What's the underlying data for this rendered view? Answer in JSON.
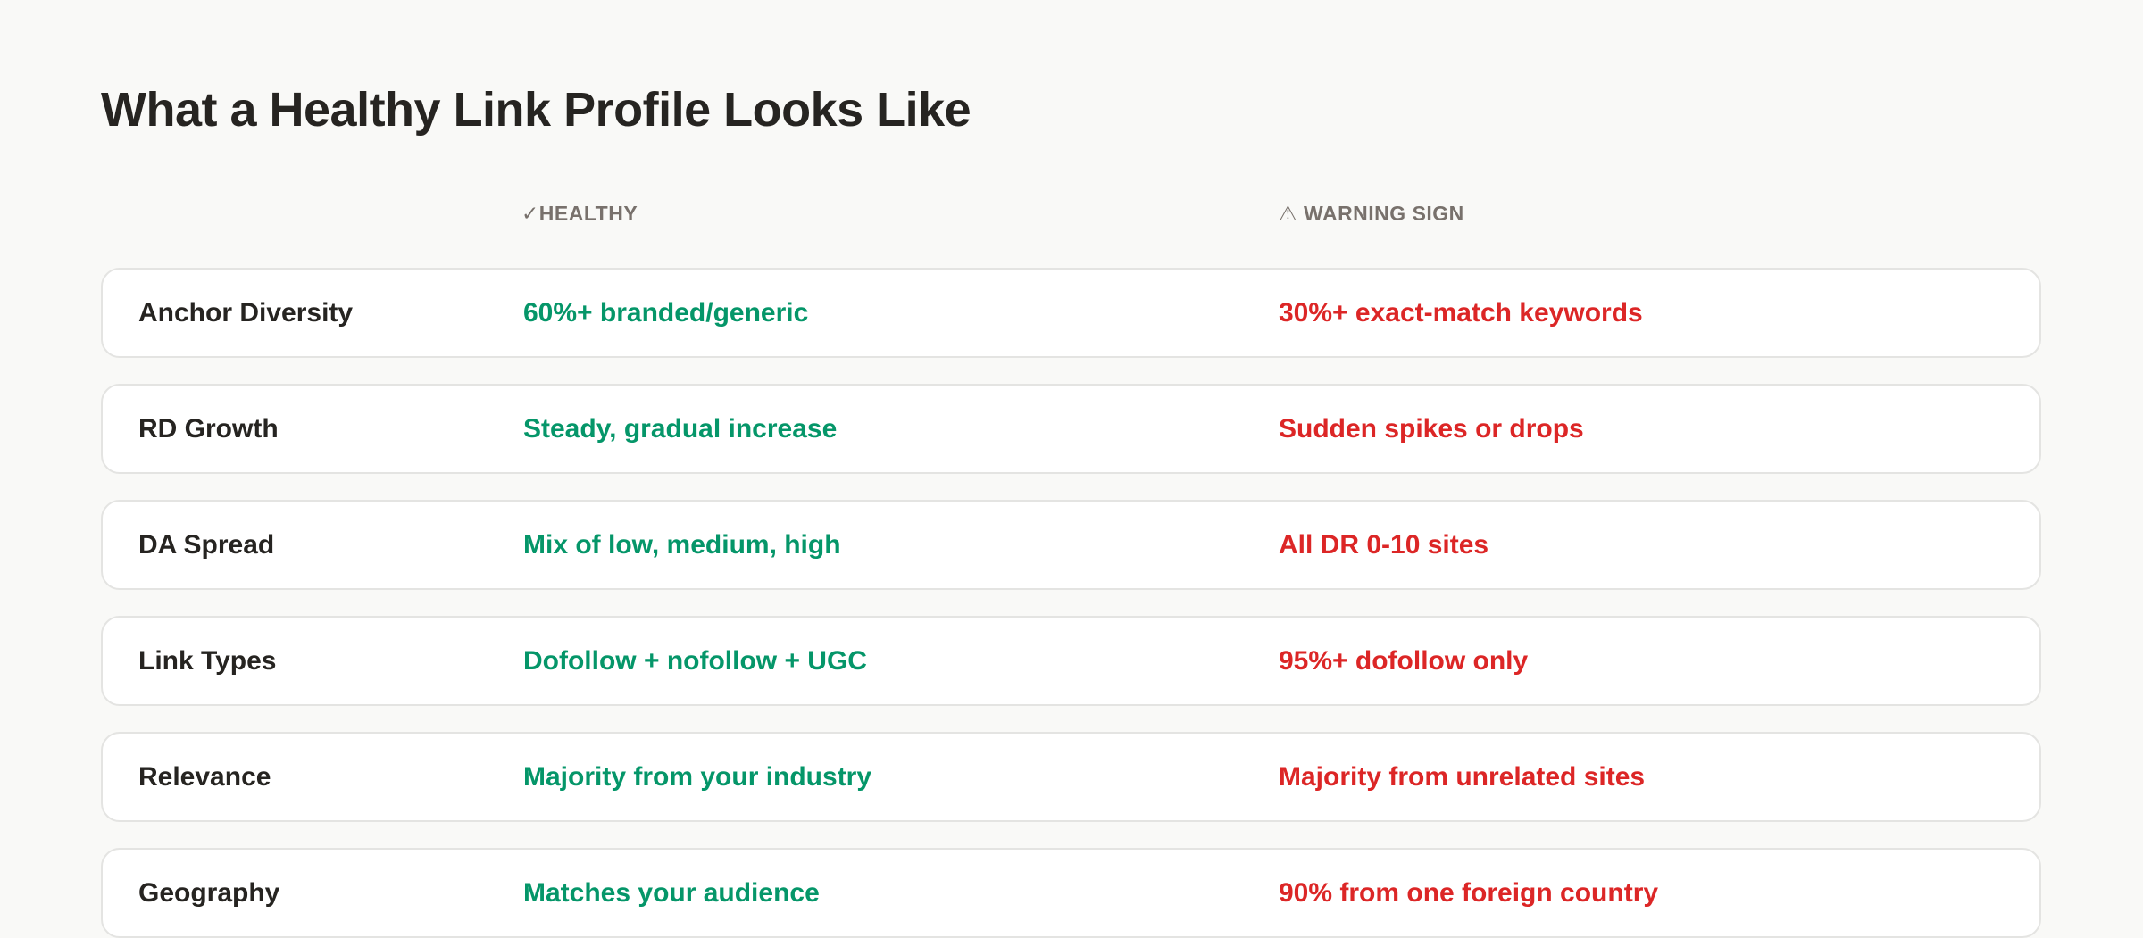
{
  "title": "What a Healthy Link Profile Looks Like",
  "columns": {
    "healthy": {
      "icon": "check-icon",
      "glyph": "✓",
      "label": "HEALTHY"
    },
    "warning": {
      "icon": "warning-icon",
      "glyph": "⚠",
      "label": "WARNING SIGN"
    }
  },
  "colors": {
    "healthy": "#059669",
    "warning": "#dc2626",
    "text": "#262421",
    "header": "#78716c"
  },
  "rows": [
    {
      "label": "Anchor Diversity",
      "healthy": "60%+ branded/generic",
      "warning": "30%+ exact-match keywords"
    },
    {
      "label": "RD Growth",
      "healthy": "Steady, gradual increase",
      "warning": "Sudden spikes or drops"
    },
    {
      "label": "DA Spread",
      "healthy": "Mix of low, medium, high",
      "warning": "All DR 0-10 sites"
    },
    {
      "label": "Link Types",
      "healthy": "Dofollow + nofollow + UGC",
      "warning": "95%+ dofollow only"
    },
    {
      "label": "Relevance",
      "healthy": "Majority from your industry",
      "warning": "Majority from unrelated sites"
    },
    {
      "label": "Geography",
      "healthy": "Matches your audience",
      "warning": "90% from one foreign country"
    }
  ]
}
